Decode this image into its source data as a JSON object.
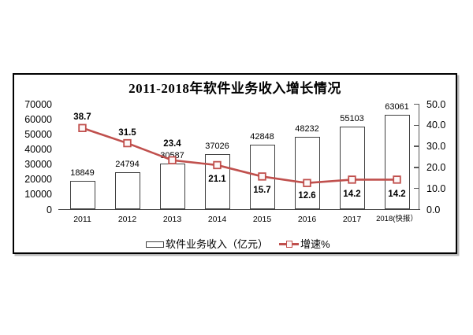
{
  "chart": {
    "title": "2011-2018年软件业务收入增长情况",
    "legend": [
      {
        "label": "软件业务收入（亿元）",
        "series": "bar"
      },
      {
        "label": "增速%",
        "series": "line"
      }
    ],
    "colors": {
      "bar_fill": "#ffffff",
      "bar_border": "#404040",
      "line": "#c0504d",
      "marker_fill": "#fdf8f8",
      "axis": "#404040",
      "text": "#000000",
      "frame_border": "#000000"
    }
  },
  "chart_data": {
    "type": "bar",
    "combo": "bar+line",
    "title": "2011-2018年软件业务收入增长情况",
    "categories": [
      "2011",
      "2012",
      "2013",
      "2014",
      "2015",
      "2016",
      "2017",
      "2018(快报）"
    ],
    "series": [
      {
        "name": "软件业务收入（亿元）",
        "type": "bar",
        "axis": "left",
        "values": [
          18849,
          24794,
          30587,
          37026,
          42848,
          48232,
          55103,
          63061
        ]
      },
      {
        "name": "增速%",
        "type": "line",
        "axis": "right",
        "values": [
          38.7,
          31.5,
          23.4,
          21.1,
          15.7,
          12.6,
          14.2,
          14.2
        ]
      }
    ],
    "left_axis": {
      "min": 0,
      "max": 70000,
      "step": 10000
    },
    "right_axis": {
      "min": 0,
      "max": 50,
      "step": 10,
      "decimals": 1
    },
    "grid": false,
    "legend_position": "bottom",
    "data_labels": true
  }
}
